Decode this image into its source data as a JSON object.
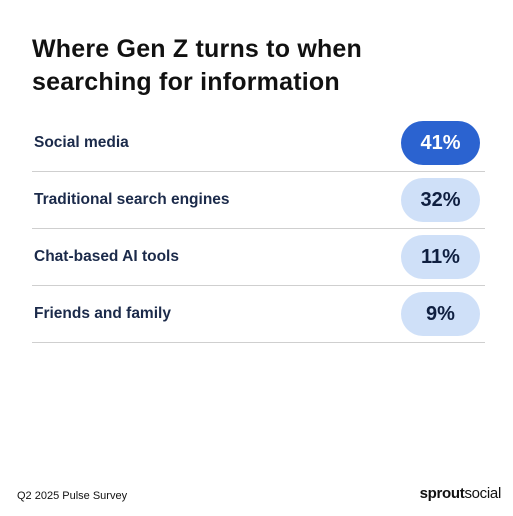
{
  "chart_data": {
    "type": "table",
    "title": "Where Gen Z turns to when searching for information",
    "categories": [
      "Social media",
      "Traditional search engines",
      "Chat-based AI tools",
      "Friends and family"
    ],
    "values": [
      41,
      32,
      11,
      9
    ],
    "value_labels": [
      "41%",
      "32%",
      "11%",
      "9%"
    ],
    "highlight_index": 0
  },
  "colors": {
    "highlight_pill": "#2b63d0",
    "normal_pill": "#cfe0f8",
    "label_text": "#1b2a4a"
  },
  "footer": {
    "source": "Q2 2025 Pulse Survey",
    "brand_part1": "sprout",
    "brand_part2": "social"
  }
}
